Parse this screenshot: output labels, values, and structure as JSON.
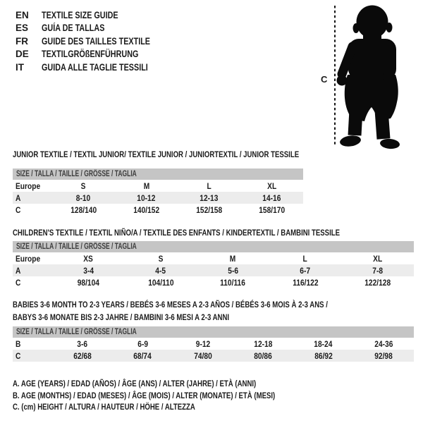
{
  "languages": {
    "items": [
      {
        "code": "EN",
        "title": "TEXTILE SIZE GUIDE"
      },
      {
        "code": "ES",
        "title": "GUÍA DE TALLAS"
      },
      {
        "code": "FR",
        "title": "GUIDE DES TAILLES TEXTILE"
      },
      {
        "code": "DE",
        "title": "TEXTILGRÖßENFÜHRUNG"
      },
      {
        "code": "IT",
        "title": "GUIDA ALLE TAGLIE TESSILI"
      }
    ]
  },
  "figure": {
    "label": "C",
    "icon": "baby-silhouette-icon"
  },
  "tables": [
    {
      "id": "junior",
      "title": "JUNIOR TEXTILE / TEXTIL JUNIOR/ TEXTILE JUNIOR / JUNIORTEXTIL / JUNIOR TESSILE",
      "header": "SIZE / TALLA / TAILLE / GRÖSSE / TAGLIA",
      "rows": [
        [
          "Europe",
          "S",
          "M",
          "L",
          "XL"
        ],
        [
          "A",
          "8-10",
          "10-12",
          "12-13",
          "14-16"
        ],
        [
          "C",
          "128/140",
          "140/152",
          "152/158",
          "158/170"
        ]
      ],
      "shaded_row_index": 1
    },
    {
      "id": "children",
      "title": "CHILDREN'S TEXTILE / TEXTIL NIÑO/A / TEXTILE DES ENFANTS / KINDERTEXTIL / BAMBINI TESSILE",
      "header": "SIZE / TALLA / TAILLE / GRÖSSE / TAGLIA",
      "rows": [
        [
          "Europe",
          "XS",
          "S",
          "M",
          "L",
          "XL"
        ],
        [
          "A",
          "3-4",
          "4-5",
          "5-6",
          "6-7",
          "7-8"
        ],
        [
          "C",
          "98/104",
          "104/110",
          "110/116",
          "116/122",
          "122/128"
        ]
      ],
      "shaded_row_index": 1
    },
    {
      "id": "babies",
      "title_lines": [
        "BABIES 3-6 MONTH TO 2-3 YEARS / BEBÉS 3-6 MESES A 2-3 AÑOS / BÉBÉS 3-6 MOIS À 2-3 ANS /",
        "BABYS 3-6 MONATE BIS 2-3 JAHRE / BAMBINI 3-6 MESI A 2-3 ANNI"
      ],
      "header": "SIZE / TALLA / TAILLE / GRÖSSE / TAGLIA",
      "rows": [
        [
          "B",
          "3-6",
          "6-9",
          "9-12",
          "12-18",
          "18-24",
          "24-36"
        ],
        [
          "C",
          "62/68",
          "68/74",
          "74/80",
          "80/86",
          "86/92",
          "92/98"
        ]
      ],
      "shaded_row_index": 1
    }
  ],
  "notes": [
    "A. AGE (YEARS) / EDAD (AÑOS) / ÂGE (ANS) / ALTER (JAHRE) / ETÀ (ANNI)",
    "B. AGE (MONTHS) / EDAD (MESES) / ÂGE (MOIS) / ALTER (MONATE) / ETÀ (MESI)",
    "C. (cm) HEIGHT / ALTURA / HAUTEUR / HÖHE / ALTEZZA"
  ],
  "colors": {
    "header_bar": "#c5c5c5",
    "shaded_row": "#ececec",
    "text": "#1b1b1b",
    "silhouette": "#0a0a0a"
  }
}
